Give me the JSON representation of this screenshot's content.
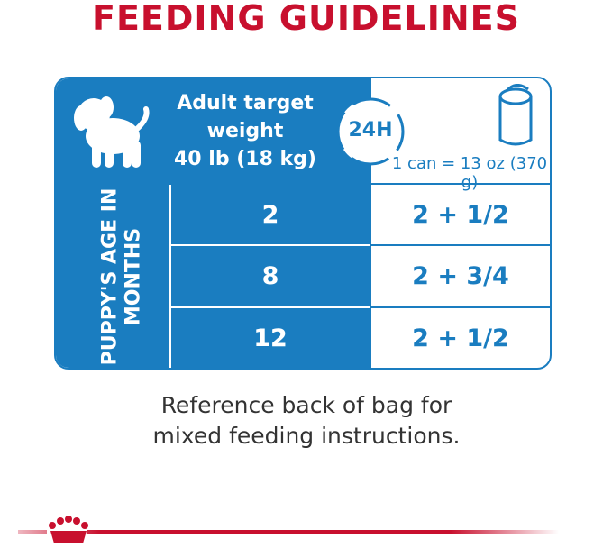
{
  "header": {
    "title": "FEEDING GUIDELINES"
  },
  "table": {
    "weight_label": [
      "Adult target",
      "weight",
      "40 lb (18 kg)"
    ],
    "period_label": "24H",
    "can_label": "1 can = 13 oz (370 g)",
    "row_header": "PUPPY'S AGE IN MONTHS",
    "rows": [
      [
        "2",
        "2 + 1/2"
      ],
      [
        "8",
        "2 + 3/4"
      ],
      [
        "12",
        "2 + 1/2"
      ]
    ]
  },
  "footer": {
    "note": "Reference back of bag for mixed feeding instructions."
  }
}
